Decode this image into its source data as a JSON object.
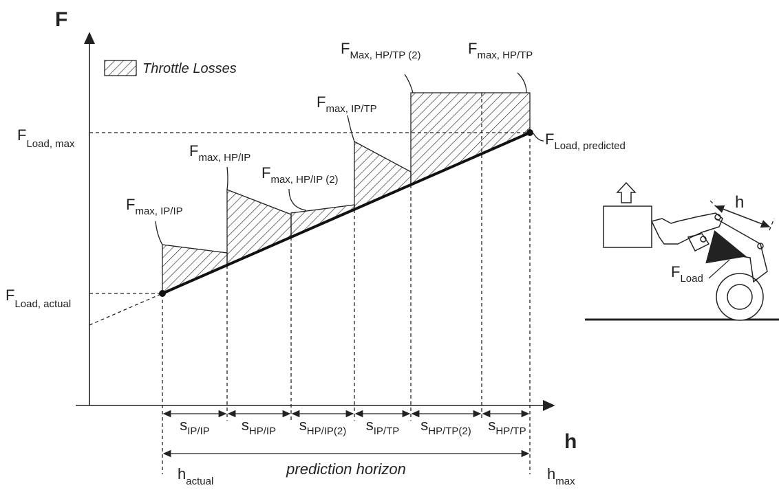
{
  "axes": {
    "y_label": "F",
    "x_label": "h"
  },
  "legend": {
    "label": "Throttle Losses"
  },
  "force_labels": {
    "load_max": {
      "main": "F",
      "sub": "Load, max"
    },
    "load_actual": {
      "main": "F",
      "sub": "Load, actual"
    },
    "max_ip_ip": {
      "main": "F",
      "sub": "max, IP/IP"
    },
    "max_hp_ip": {
      "main": "F",
      "sub": "max, HP/IP"
    },
    "max_hp_ip_2": {
      "main": "F",
      "sub": "max, HP/IP (2)"
    },
    "max_ip_tp": {
      "main": "F",
      "sub": "max, IP/TP"
    },
    "max_hp_tp_2": {
      "main": "F",
      "sub": "Max, HP/TP (2)"
    },
    "max_hp_tp": {
      "main": "F",
      "sub": "max, HP/TP"
    },
    "load_predicted": {
      "main": "F",
      "sub": "Load, predicted"
    }
  },
  "segments": [
    {
      "main": "s",
      "sub": "IP/IP"
    },
    {
      "main": "s",
      "sub": "HP/IP"
    },
    {
      "main": "s",
      "sub": "HP/IP(2)"
    },
    {
      "main": "s",
      "sub": "IP/TP"
    },
    {
      "main": "s",
      "sub": "HP/TP(2)"
    },
    {
      "main": "s",
      "sub": "HP/TP"
    }
  ],
  "horizon": {
    "label": "prediction horizon",
    "start": {
      "main": "h",
      "sub": "actual"
    },
    "end": {
      "main": "h",
      "sub": "max"
    }
  },
  "loader": {
    "stroke_label": "h",
    "force": {
      "main": "F",
      "sub": "Load"
    }
  }
}
